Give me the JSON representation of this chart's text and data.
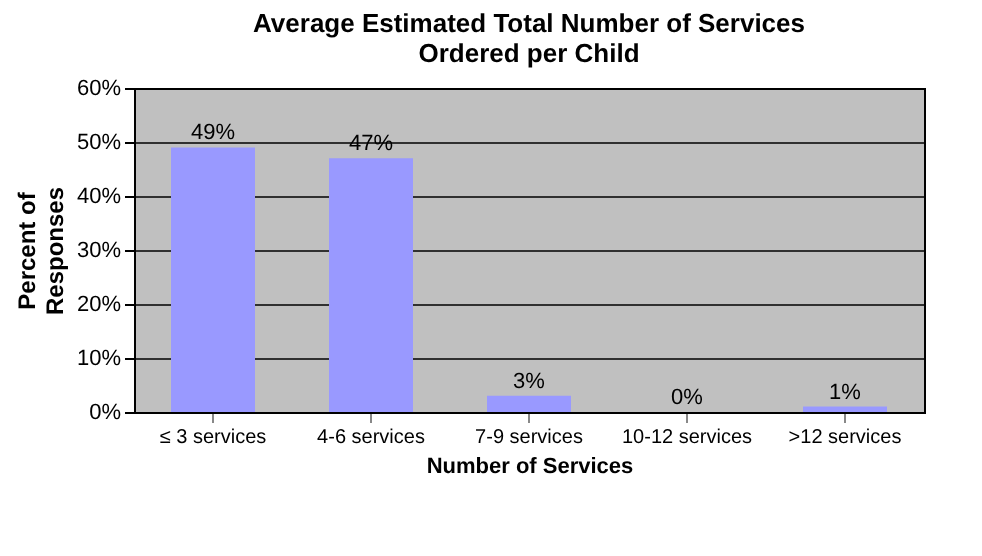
{
  "chart_data": {
    "type": "bar",
    "title": "Average Estimated Total Number of Services Ordered per Child",
    "xlabel": "Number of Services",
    "ylabel": "Percent of Responses",
    "categories": [
      "≤ 3 services",
      "4-6 services",
      "7-9 services",
      "10-12 services",
      ">12 services"
    ],
    "values": [
      49,
      47,
      3,
      0,
      1
    ],
    "value_labels": [
      "49%",
      "47%",
      "3%",
      "0%",
      "1%"
    ],
    "color": "#9999ff",
    "ylim": [
      0,
      60
    ],
    "yticks": [
      {
        "value": 0,
        "label": "0%"
      },
      {
        "value": 10,
        "label": "10%"
      },
      {
        "value": 20,
        "label": "20%"
      },
      {
        "value": 30,
        "label": "30%"
      },
      {
        "value": 40,
        "label": "40%"
      },
      {
        "value": 50,
        "label": "50%"
      },
      {
        "value": 60,
        "label": "60%"
      }
    ],
    "grid": "y",
    "legend": false
  }
}
